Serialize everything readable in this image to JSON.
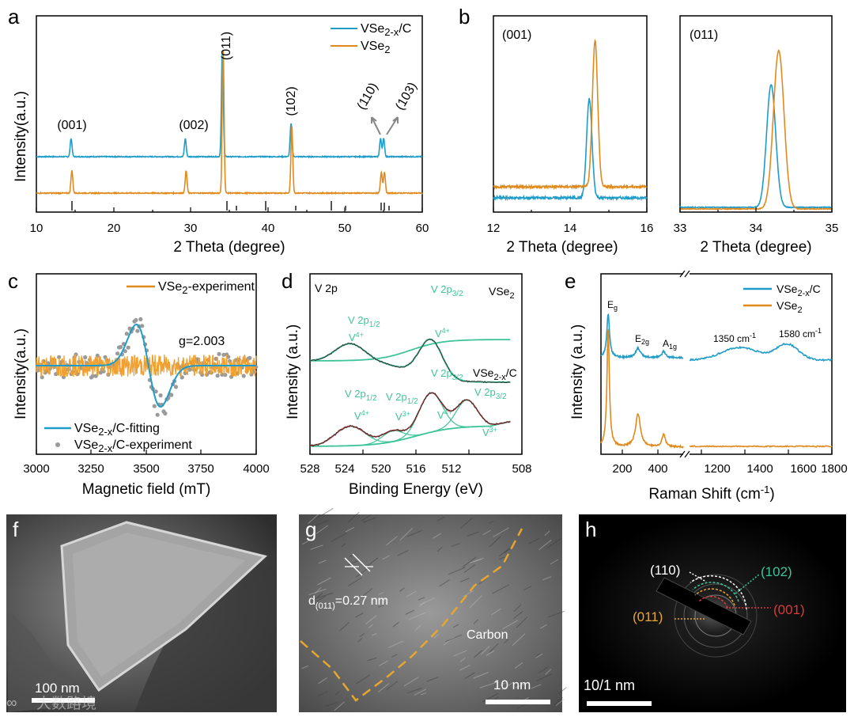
{
  "colors": {
    "teal": "#1f9cc8",
    "orange": "#e08a1e",
    "green": "#3ec49a",
    "red": "#d83a3a",
    "blue": "#2f6fc8",
    "gray": "#9a9a9a",
    "yellow": "#e6a630"
  },
  "panels": {
    "a": {
      "letter": "a",
      "xlabel": "2 Theta (degree)",
      "ylabel": "Intensity(a.u.)",
      "xticks": [
        "10",
        "20",
        "30",
        "40",
        "50",
        "60"
      ],
      "peaks": [
        "(001)",
        "(002)",
        "(011)",
        "(102)",
        "(110)",
        "(103)"
      ],
      "legend": [
        "VSe",
        "2-x",
        "/C",
        "VSe",
        "2"
      ]
    },
    "b": {
      "letter": "b",
      "xlabel1": "2 Theta (degree)",
      "xlabel2": "2 Theta (degree)",
      "inset1": "(001)",
      "inset2": "(011)",
      "xticks1": [
        "12",
        "14",
        "16"
      ],
      "xticks2": [
        "33",
        "34",
        "35"
      ]
    },
    "c": {
      "letter": "c",
      "xlabel": "Magnetic field (mT)",
      "ylabel": "Intensity(a.u.)",
      "xticks": [
        "3000",
        "3250",
        "3500",
        "3750",
        "4000"
      ],
      "legend_exp": "VSe",
      "legend_exp_sub": "2",
      "legend_exp_tail": "-experiment",
      "g_value": "g=2.003",
      "legend_fit": "VSe",
      "legend_fit_sub": "2-x",
      "legend_fit_tail": "/C-fitting",
      "legend_pts": "VSe",
      "legend_pts_sub": "2-x",
      "legend_pts_tail": "/C-experiment"
    },
    "d": {
      "letter": "d",
      "xlabel": "Binding Energy (eV)",
      "ylabel": "Intensity (a.u.)",
      "xticks": [
        "528",
        "524",
        "520",
        "516",
        "512",
        "508"
      ],
      "title": "V 2p",
      "top_sample": "VSe",
      "top_sample_sub": "2",
      "bot_sample": "VSe",
      "bot_sample_sub": "2-x",
      "bot_sample_tail": "/C",
      "v2p": "V 2p",
      "half": "1/2",
      "threehalf": "3/2",
      "v": "V",
      "v4": "4+",
      "v3": "3+"
    },
    "e": {
      "letter": "e",
      "xlabel": "Raman Shift (cm",
      "xlabel_sup": "-1",
      "xlabel_tail": ")",
      "ylabel": "Intensity (a.u.)",
      "xticks": [
        "200",
        "400",
        "1200",
        "1400",
        "1600",
        "1800"
      ],
      "eg": "E",
      "eg_sub": "g",
      "e2g": "E",
      "e2g_sub": "2g",
      "a1g": "A",
      "a1g_sub": "1g",
      "b1350": "1350 cm",
      "b1580": "1580 cm",
      "sup": "-1",
      "legend": [
        "VSe",
        "2-x",
        "/C",
        "VSe",
        "2"
      ]
    },
    "f": {
      "letter": "f",
      "scale": "100 nm",
      "watermark": "大数路境"
    },
    "g": {
      "letter": "g",
      "d_label": "d",
      "d_sub": "(011)",
      "d_val": "=0.27 nm",
      "carbon": "Carbon",
      "scale": "10 nm"
    },
    "h": {
      "letter": "h",
      "scale": "10/1 nm",
      "rings": [
        "(110)",
        "(102)",
        "(011)",
        "(001)"
      ]
    }
  },
  "chart_data": [
    {
      "type": "line",
      "panel": "a",
      "title": "",
      "xlabel": "2 Theta (degree)",
      "ylabel": "Intensity(a.u.)",
      "xlim": [
        10,
        60
      ],
      "series": [
        {
          "name": "VSe2-x/C",
          "peaks": [
            [
              14.5,
              0.12
            ],
            [
              29.3,
              0.12
            ],
            [
              34.1,
              0.7
            ],
            [
              43.0,
              0.22
            ],
            [
              54.6,
              0.12
            ],
            [
              55.0,
              0.12
            ]
          ]
        },
        {
          "name": "VSe2",
          "peaks": [
            [
              14.6,
              0.15
            ],
            [
              29.4,
              0.15
            ],
            [
              34.2,
              0.95
            ],
            [
              43.1,
              0.45
            ],
            [
              54.7,
              0.14
            ],
            [
              55.1,
              0.14
            ]
          ]
        }
      ],
      "annotations": [
        "(001)",
        "(002)",
        "(011)",
        "(102)",
        "(110)",
        "(103)"
      ]
    },
    {
      "type": "line",
      "panel": "b-left",
      "xlabel": "2 Theta (degree)",
      "xlim": [
        12,
        16
      ],
      "series": [
        {
          "name": "VSe2-x/C",
          "peak": 14.5
        },
        {
          "name": "VSe2",
          "peak": 14.65
        }
      ]
    },
    {
      "type": "line",
      "panel": "b-right",
      "xlabel": "2 Theta (degree)",
      "xlim": [
        33,
        35
      ],
      "series": [
        {
          "name": "VSe2-x/C",
          "peak": 34.2
        },
        {
          "name": "VSe2",
          "peak": 34.3
        }
      ]
    },
    {
      "type": "scatter",
      "panel": "c",
      "xlabel": "Magnetic field (mT)",
      "ylabel": "Intensity(a.u.)",
      "xlim": [
        3000,
        4000
      ],
      "series": [
        {
          "name": "VSe2-experiment"
        },
        {
          "name": "VSe2-x/C-fitting"
        },
        {
          "name": "VSe2-x/C-experiment"
        }
      ],
      "annotation": "g=2.003"
    },
    {
      "type": "line",
      "panel": "d",
      "xlabel": "Binding Energy (eV)",
      "ylabel": "Intensity (a.u.)",
      "xlim": [
        528,
        508
      ],
      "peaks": {
        "VSe2": [
          524.2,
          516.6
        ],
        "VSe2-x/C": [
          524.2,
          520.2,
          516.6,
          513.2
        ]
      }
    },
    {
      "type": "line",
      "panel": "e",
      "xlabel": "Raman Shift (cm-1)",
      "ylabel": "Intensity (a.u.)",
      "xlim": [
        100,
        1800
      ],
      "series": [
        {
          "name": "VSe2-x/C",
          "peaks": [
            135,
            280,
            405,
            1350,
            1580
          ]
        },
        {
          "name": "VSe2",
          "peaks": [
            135,
            280,
            405
          ]
        }
      ]
    }
  ]
}
